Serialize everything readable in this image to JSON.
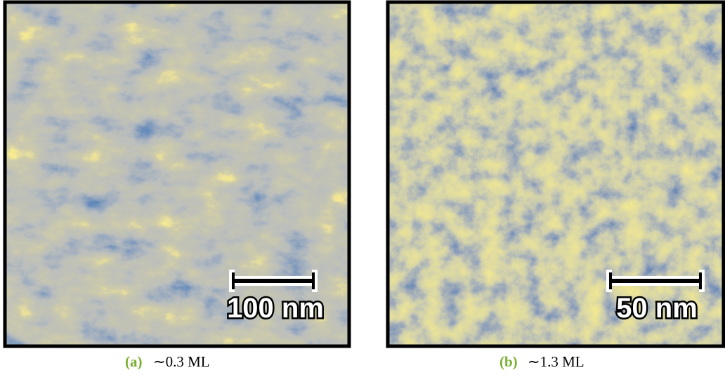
{
  "panels": [
    {
      "scale_bar": "100 nm",
      "label": "(a)",
      "caption": "∼0.3 ML"
    },
    {
      "scale_bar": "50 nm",
      "label": "(b)",
      "caption": "∼1.3 ML"
    }
  ]
}
